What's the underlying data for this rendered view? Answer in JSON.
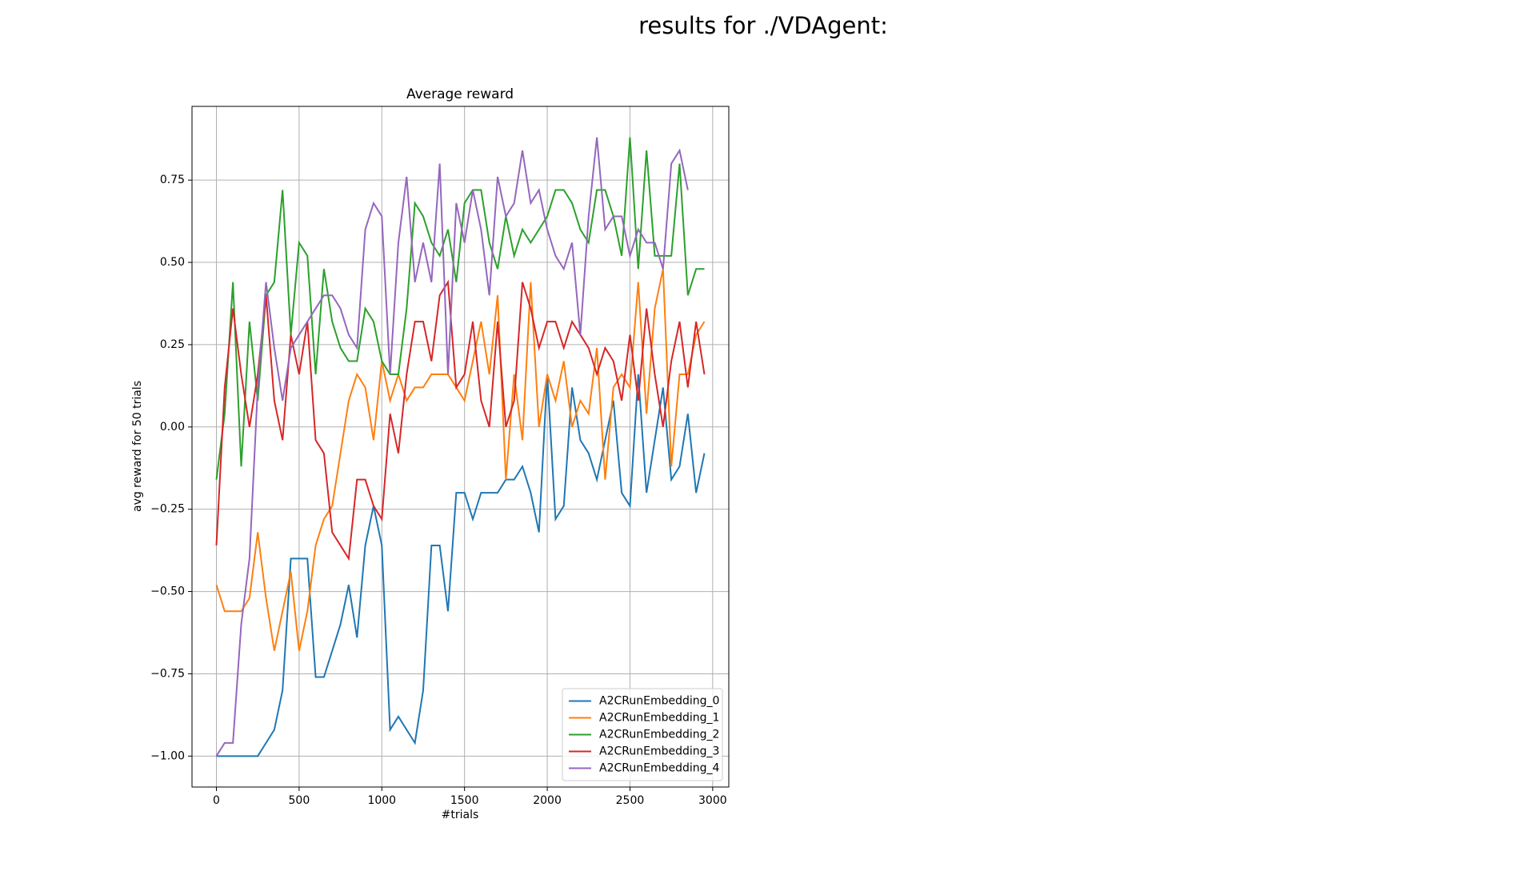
{
  "chart_data": {
    "type": "line",
    "suptitle": "results for ./VDAgent:",
    "title": "Average reward",
    "xlabel": "#trials",
    "ylabel": "avg reward for 50 trials",
    "x": [
      0,
      50,
      100,
      150,
      200,
      250,
      300,
      350,
      400,
      450,
      500,
      550,
      600,
      650,
      700,
      750,
      800,
      850,
      900,
      950,
      1000,
      1050,
      1100,
      1150,
      1200,
      1250,
      1300,
      1350,
      1400,
      1450,
      1500,
      1550,
      1600,
      1650,
      1700,
      1750,
      1800,
      1850,
      1900,
      1950,
      2000,
      2050,
      2100,
      2150,
      2200,
      2250,
      2300,
      2350,
      2400,
      2450,
      2500,
      2550,
      2600,
      2650,
      2700,
      2750,
      2800,
      2850,
      2900,
      2950
    ],
    "series": [
      {
        "name": "A2CRunEmbedding_0",
        "color": "#1f77b4",
        "values": [
          -1,
          -1,
          -1,
          -1,
          -1,
          -1,
          -0.96,
          -0.92,
          -0.8,
          -0.4,
          -0.4,
          -0.4,
          -0.76,
          -0.76,
          -0.68,
          -0.6,
          -0.48,
          -0.64,
          -0.36,
          -0.24,
          -0.36,
          -0.92,
          -0.88,
          -0.92,
          -0.96,
          -0.8,
          -0.36,
          -0.36,
          -0.56,
          -0.2,
          -0.2,
          -0.28,
          -0.2,
          -0.2,
          -0.2,
          -0.16,
          -0.16,
          -0.12,
          -0.2,
          -0.32,
          0.16,
          -0.28,
          -0.24,
          0.12,
          -0.04,
          -0.08,
          -0.16,
          -0.04,
          0.08,
          -0.2,
          -0.24,
          0.16,
          -0.2,
          -0.04,
          0.12,
          -0.16,
          -0.12,
          0.04,
          -0.2,
          -0.08
        ]
      },
      {
        "name": "A2CRunEmbedding_1",
        "color": "#ff7f0e",
        "values": [
          -0.48,
          -0.56,
          -0.56,
          -0.56,
          -0.52,
          -0.32,
          -0.52,
          -0.68,
          -0.56,
          -0.44,
          -0.68,
          -0.56,
          -0.36,
          -0.28,
          -0.24,
          -0.08,
          0.08,
          0.16,
          0.12,
          -0.04,
          0.2,
          0.08,
          0.16,
          0.08,
          0.12,
          0.12,
          0.16,
          0.16,
          0.16,
          0.12,
          0.08,
          0.2,
          0.32,
          0.16,
          0.4,
          -0.16,
          0.16,
          -0.04,
          0.44,
          0,
          0.16,
          0.08,
          0.2,
          0,
          0.08,
          0.04,
          0.24,
          -0.16,
          0.12,
          0.16,
          0.12,
          0.44,
          0.04,
          0.36,
          0.48,
          -0.12,
          0.16,
          0.16,
          0.28,
          0.32
        ]
      },
      {
        "name": "A2CRunEmbedding_2",
        "color": "#2ca02c",
        "values": [
          -0.16,
          0.04,
          0.44,
          -0.12,
          0.32,
          0.08,
          0.4,
          0.44,
          0.72,
          0.28,
          0.56,
          0.52,
          0.16,
          0.48,
          0.32,
          0.24,
          0.2,
          0.2,
          0.36,
          0.32,
          0.2,
          0.16,
          0.16,
          0.36,
          0.68,
          0.64,
          0.56,
          0.52,
          0.6,
          0.44,
          0.68,
          0.72,
          0.72,
          0.56,
          0.48,
          0.64,
          0.52,
          0.6,
          0.56,
          0.6,
          0.64,
          0.72,
          0.72,
          0.68,
          0.6,
          0.56,
          0.72,
          0.72,
          0.64,
          0.52,
          0.88,
          0.48,
          0.84,
          0.52,
          0.52,
          0.52,
          0.8,
          0.4,
          0.48,
          0.48
        ]
      },
      {
        "name": "A2CRunEmbedding_3",
        "color": "#d62728",
        "values": [
          -0.36,
          0.12,
          0.36,
          0.16,
          0,
          0.16,
          0.4,
          0.08,
          -0.04,
          0.28,
          0.16,
          0.32,
          -0.04,
          -0.08,
          -0.32,
          -0.36,
          -0.4,
          -0.16,
          -0.16,
          -0.24,
          -0.28,
          0.04,
          -0.08,
          0.16,
          0.32,
          0.32,
          0.2,
          0.4,
          0.44,
          0.12,
          0.16,
          0.32,
          0.08,
          0,
          0.32,
          0,
          0.08,
          0.44,
          0.36,
          0.24,
          0.32,
          0.32,
          0.24,
          0.32,
          0.28,
          0.24,
          0.16,
          0.24,
          0.2,
          0.08,
          0.28,
          0.08,
          0.36,
          0.16,
          0,
          0.2,
          0.32,
          0.12,
          0.32,
          0.16
        ]
      },
      {
        "name": "A2CRunEmbedding_4",
        "color": "#9467bd",
        "values": [
          -1,
          -0.96,
          -0.96,
          -0.6,
          -0.4,
          0.12,
          0.44,
          0.24,
          0.08,
          0.24,
          0.28,
          0.32,
          0.36,
          0.4,
          0.4,
          0.36,
          0.28,
          0.24,
          0.6,
          0.68,
          0.64,
          0.16,
          0.56,
          0.76,
          0.44,
          0.56,
          0.44,
          0.8,
          0.16,
          0.68,
          0.56,
          0.72,
          0.6,
          0.4,
          0.76,
          0.64,
          0.68,
          0.84,
          0.68,
          0.72,
          0.6,
          0.52,
          0.48,
          0.56,
          0.28,
          0.64,
          0.88,
          0.6,
          0.64,
          0.64,
          0.52,
          0.6,
          0.56,
          0.56,
          0.48,
          0.8,
          0.84,
          0.72,
          null,
          null
        ]
      }
    ],
    "xlim": [
      -147.5,
      3097.5
    ],
    "ylim": [
      -1.094,
      0.974
    ],
    "xticks": [
      0,
      500,
      1000,
      1500,
      2000,
      2500,
      3000
    ],
    "yticks": [
      {
        "value": -1,
        "label": "−1.00"
      },
      {
        "value": -0.75,
        "label": "−0.75"
      },
      {
        "value": -0.5,
        "label": "−0.50"
      },
      {
        "value": -0.25,
        "label": "−0.25"
      },
      {
        "value": 0,
        "label": "0.00"
      },
      {
        "value": 0.25,
        "label": "0.25"
      },
      {
        "value": 0.5,
        "label": "0.50"
      },
      {
        "value": 0.75,
        "label": "0.75"
      }
    ],
    "grid": true,
    "legend": "lower right"
  }
}
